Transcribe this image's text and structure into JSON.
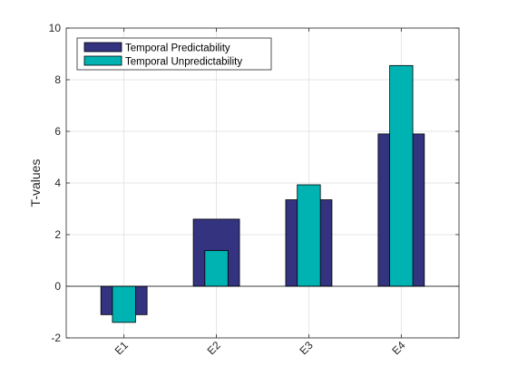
{
  "chart_data": {
    "type": "bar",
    "style": "overlapped",
    "categories": [
      "E1",
      "E2",
      "E3",
      "E4"
    ],
    "series": [
      {
        "name": "Temporal Predictability",
        "values": [
          -1.1,
          2.6,
          3.35,
          5.9
        ],
        "color": "#333380"
      },
      {
        "name": "Temporal Unpredictability",
        "values": [
          -1.4,
          1.38,
          3.93,
          8.55
        ],
        "color": "#00b3b3"
      }
    ],
    "ylabel": "T-values",
    "xlabel": "",
    "ylim": [
      -2,
      10
    ],
    "yticks": [
      -2,
      0,
      2,
      4,
      6,
      8,
      10
    ],
    "grid": true,
    "legend_position": "top-left",
    "xtick_rotation": "45deg"
  }
}
